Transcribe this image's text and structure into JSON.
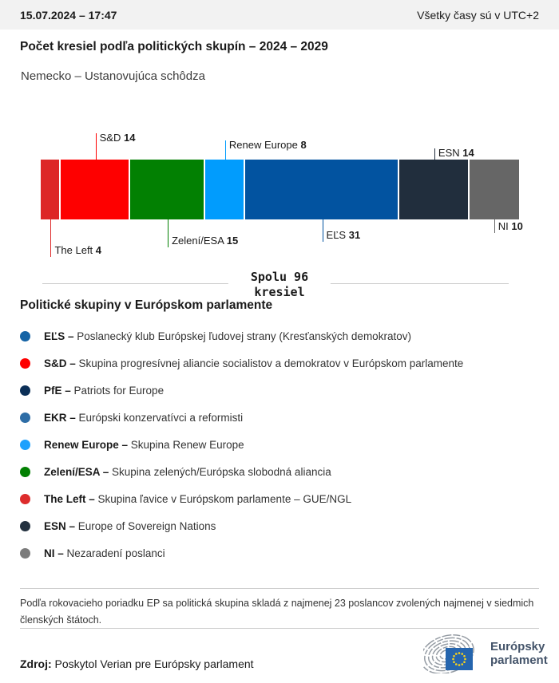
{
  "header": {
    "datetime": "15.07.2024 – 17:47",
    "timezone_note": "Všetky časy sú v UTC+2"
  },
  "title": "Počet kresiel podľa politických skupín – 2024 – 2029",
  "subtitle": "Nemecko – Ustanovujúca schôdza",
  "chart_data": {
    "type": "bar",
    "variant": "horizontal-stacked-single-bar",
    "title": "Počet kresiel podľa politických skupín – 2024 – 2029",
    "total_seats": 96,
    "total_label_line1": "Spolu 96",
    "total_label_line2": "kresiel",
    "categories": [
      "The Left",
      "S&D",
      "Zelení/ESA",
      "Renew Europe",
      "EĽS",
      "ESN",
      "NI"
    ],
    "values": [
      4,
      14,
      15,
      8,
      31,
      14,
      10
    ],
    "segments": [
      {
        "name": "The Left",
        "seats": 4,
        "color": "#dd2727",
        "label_side": "below",
        "label_offset": 47
      },
      {
        "name": "S&D",
        "seats": 14,
        "color": "#fe0000",
        "label_side": "above",
        "label_offset": 33
      },
      {
        "name": "Zelení/ESA",
        "seats": 15,
        "color": "#028002",
        "label_side": "below",
        "label_offset": 35
      },
      {
        "name": "Renew Europe",
        "seats": 8,
        "color": "#019cfd",
        "label_side": "above",
        "label_offset": 24
      },
      {
        "name": "EĽS",
        "seats": 31,
        "color": "#0253a0",
        "label_side": "below",
        "label_offset": 28
      },
      {
        "name": "ESN",
        "seats": 14,
        "color": "#212e3d",
        "label_side": "above",
        "label_offset": 14
      },
      {
        "name": "NI",
        "seats": 10,
        "color": "#666666",
        "label_side": "below",
        "label_offset": 17
      }
    ]
  },
  "legend": {
    "heading": "Politické skupiny v Európskom parlamente",
    "items": [
      {
        "abbr": "EĽS –",
        "desc": "Poslanecký klub Európskej ľudovej strany (Kresťanských demokratov)",
        "color": "#1563a5"
      },
      {
        "abbr": "S&D –",
        "desc": "Skupina progresívnej aliancie socialistov a demokratov v Európskom parlamente",
        "color": "#fe0000"
      },
      {
        "abbr": "PfE –",
        "desc": "Patriots for Europe",
        "color": "#0b2f57"
      },
      {
        "abbr": "EKR –",
        "desc": "Európski konzervatívci a reformisti",
        "color": "#2e6da6"
      },
      {
        "abbr": "Renew Europe –",
        "desc": "Skupina Renew Europe",
        "color": "#1da1fd"
      },
      {
        "abbr": "Zelení/ESA –",
        "desc": "Skupina zelených/Európska slobodná aliancia",
        "color": "#028002"
      },
      {
        "abbr": "The Left –",
        "desc": "Skupina ľavice v Európskom parlamente – GUE/NGL",
        "color": "#dd2c2c"
      },
      {
        "abbr": "ESN –",
        "desc": "Europe of Sovereign Nations",
        "color": "#243240"
      },
      {
        "abbr": "NI –",
        "desc": "Nezaradení poslanci",
        "color": "#7b7b7b"
      }
    ]
  },
  "footnote": "Podľa rokovacieho poriadku EP sa politická skupina skladá z najmenej 23 poslancov zvolených najmenej v siedmich členských štátoch.",
  "source": {
    "label": "Zdroj:",
    "text": " Poskytol Verian pre Európsky parlament"
  },
  "logo": {
    "line1": "Európsky",
    "line2": "parlament"
  }
}
